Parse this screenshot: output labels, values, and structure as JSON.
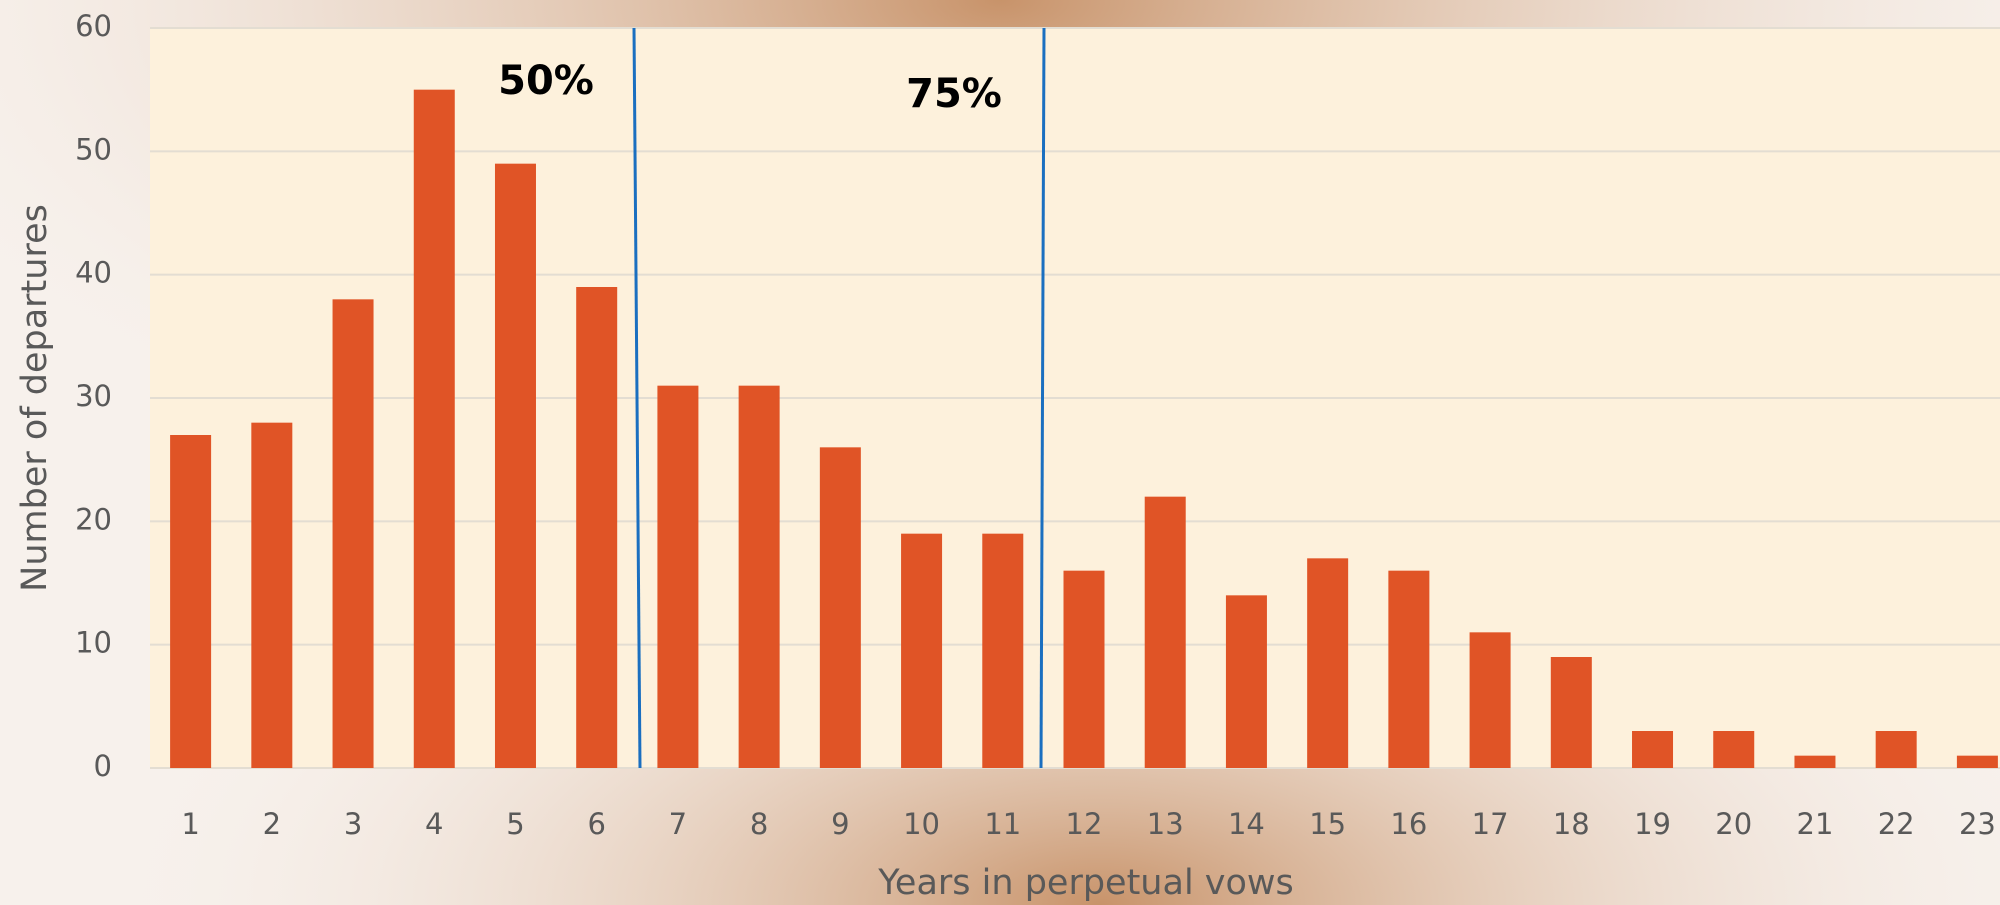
{
  "chart_data": {
    "type": "bar",
    "x_label": "Years in perpetual vows",
    "y_label": "Number of departures",
    "categories": [
      "1",
      "2",
      "3",
      "4",
      "5",
      "6",
      "7",
      "8",
      "9",
      "10",
      "11",
      "12",
      "13",
      "14",
      "15",
      "16",
      "17",
      "18",
      "19",
      "20",
      "21",
      "22",
      "23"
    ],
    "values": [
      27,
      28,
      38,
      55,
      49,
      39,
      31,
      31,
      26,
      19,
      19,
      16,
      22,
      14,
      17,
      16,
      11,
      9,
      3,
      3,
      1,
      3,
      1
    ],
    "color": "#e05426",
    "ylim": [
      0,
      60
    ],
    "yticks": [
      0,
      10,
      20,
      30,
      40,
      50,
      60
    ],
    "grid": true,
    "annotations": [
      {
        "text": "50%",
        "line_color": "#1a6fc0"
      },
      {
        "text": "75%",
        "line_color": "#1a6fc0"
      }
    ]
  }
}
